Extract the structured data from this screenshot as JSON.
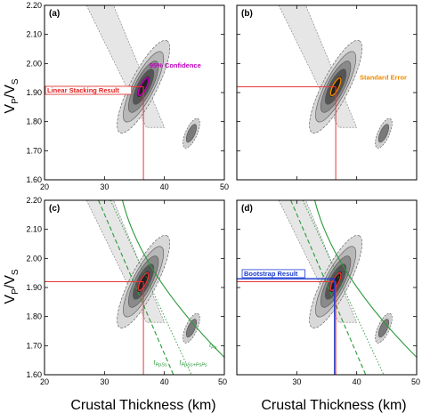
{
  "figure": {
    "xlabel": "Crustal Thickness (km)",
    "ylabel_main": "V",
    "ylabel_sub1": "P",
    "ylabel_slash": "/V",
    "ylabel_sub2": "S"
  },
  "chart_data": [
    {
      "type": "heatmap",
      "panel": "(a)",
      "xlim": [
        20,
        50
      ],
      "ylim": [
        1.6,
        2.2
      ],
      "xticks": [
        20,
        30,
        40,
        50
      ],
      "yticks": [
        1.6,
        1.7,
        1.8,
        1.9,
        2.0,
        2.1,
        2.2
      ],
      "xtick_labels": [
        "20",
        "30",
        "40",
        "50"
      ],
      "ytick_labels": [
        "1.60",
        "1.70",
        "1.80",
        "1.90",
        "2.00",
        "2.10",
        "2.20"
      ],
      "peak": {
        "thickness": 36.5,
        "vpvs": 1.92
      },
      "annotations": [
        {
          "text": "95% Confidence",
          "color": "#c000c0"
        },
        {
          "text": "Linear Stacking Result",
          "color": "#e02020"
        }
      ]
    },
    {
      "type": "heatmap",
      "panel": "(b)",
      "xlim": [
        20,
        50
      ],
      "ylim": [
        1.6,
        2.2
      ],
      "xticks": [
        20,
        30,
        40,
        50
      ],
      "yticks": [
        1.6,
        1.7,
        1.8,
        1.9,
        2.0,
        2.1,
        2.2
      ],
      "peak": {
        "thickness": 36.5,
        "vpvs": 1.92
      },
      "annotations": [
        {
          "text": "Standard Error",
          "color": "#f08c00"
        }
      ]
    },
    {
      "type": "heatmap",
      "panel": "(c)",
      "xlim": [
        20,
        50
      ],
      "ylim": [
        1.6,
        2.2
      ],
      "xticks": [
        20,
        30,
        40,
        50
      ],
      "yticks": [
        1.6,
        1.7,
        1.8,
        1.9,
        2.0,
        2.1,
        2.2
      ],
      "xtick_labels": [
        "20",
        "30",
        "40",
        "50"
      ],
      "ytick_labels": [
        "1.60",
        "1.70",
        "1.80",
        "1.90",
        "2.00",
        "2.10",
        "2.20"
      ],
      "peak": {
        "thickness": 36.5,
        "vpvs": 1.92
      },
      "phase_labels": [
        {
          "main": "t",
          "sub": "Ps"
        },
        {
          "main": "t",
          "sub": "PpSs"
        },
        {
          "main": "t",
          "sub": "PpSs+PsPs"
        }
      ]
    },
    {
      "type": "heatmap",
      "panel": "(d)",
      "xlim": [
        20,
        50
      ],
      "ylim": [
        1.6,
        2.2
      ],
      "xticks": [
        20,
        30,
        40,
        50
      ],
      "yticks": [
        1.6,
        1.7,
        1.8,
        1.9,
        2.0,
        2.1,
        2.2
      ],
      "xtick_labels": [
        "30",
        "40",
        "50"
      ],
      "peak": {
        "thickness": 36.5,
        "vpvs": 1.92
      },
      "bootstrap": {
        "thickness": 36.3,
        "vpvs": 1.93
      },
      "annotations": [
        {
          "text": "Bootstrap Result",
          "color": "#1a3ad0"
        }
      ]
    }
  ],
  "colors": {
    "linear": "#e8373b",
    "confidence": "#c000c0",
    "standard_error": "#f08c00",
    "bootstrap": "#1a3ad0",
    "phase": "#2a9a3a"
  }
}
